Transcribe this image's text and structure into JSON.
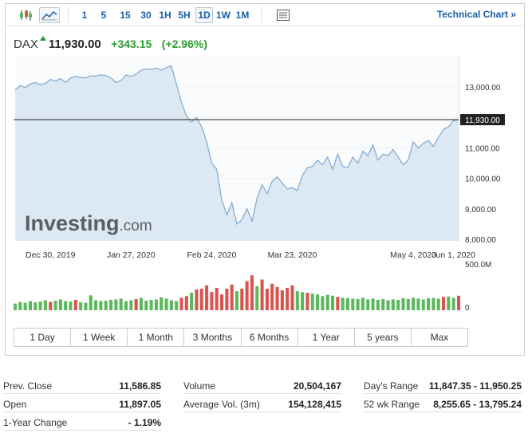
{
  "toolbar": {
    "intervals": [
      "1",
      "5",
      "15",
      "30",
      "1H",
      "5H",
      "1D",
      "1W",
      "1M"
    ],
    "active_interval": "1D",
    "technical_chart_label": "Technical Chart »"
  },
  "quote": {
    "symbol": "DAX",
    "price": "11,930.00",
    "change": "+343.15",
    "change_pct": "(+2.96%)",
    "up_color": "#2b9c2b"
  },
  "watermark": {
    "brand": "Investing",
    "suffix": ".com"
  },
  "chart_data": {
    "type": "area",
    "series": [
      {
        "values": [
          12900,
          13050,
          12980,
          13100,
          13150,
          13080,
          13120,
          13250,
          13200,
          13280,
          13150,
          13300,
          13350,
          13320,
          13300,
          13370,
          13360,
          13400,
          13380,
          13300,
          13150,
          13220,
          13400,
          13350,
          13420,
          13550,
          13600,
          13580,
          13620,
          13560,
          13640,
          13690,
          13100,
          12500,
          12050,
          11850,
          12000,
          11700,
          11200,
          10500,
          10300,
          9300,
          8800,
          9200,
          8500,
          8650,
          9000,
          8600,
          9350,
          9800,
          9500,
          9900,
          10050,
          9850,
          9650,
          9700,
          9600,
          10100,
          10350,
          10400,
          10600,
          10450,
          10700,
          10300,
          10800,
          10400,
          10350,
          10700,
          10500,
          10900,
          10750,
          11100,
          10600,
          10800,
          10750,
          10950,
          10700,
          10450,
          10600,
          11200,
          11000,
          11150,
          11250,
          11050,
          11350,
          11600,
          11700,
          11900,
          11930
        ]
      }
    ],
    "volume": [
      80,
      100,
      90,
      110,
      95,
      105,
      120,
      100,
      115,
      130,
      110,
      105,
      125,
      95,
      90,
      180,
      120,
      110,
      115,
      125,
      130,
      140,
      110,
      120,
      135,
      150,
      115,
      125,
      130,
      155,
      140,
      120,
      110,
      150,
      170,
      210,
      250,
      260,
      300,
      220,
      270,
      190,
      260,
      310,
      230,
      260,
      350,
      420,
      290,
      370,
      260,
      320,
      280,
      240,
      270,
      300,
      230,
      220,
      210,
      200,
      190,
      170,
      185,
      175,
      160,
      150,
      145,
      140,
      135,
      150,
      130,
      140,
      125,
      135,
      120,
      130,
      125,
      145,
      135,
      150,
      140,
      130,
      145,
      150,
      140,
      160,
      165,
      150,
      175
    ],
    "volume_colors": "gggggggrggggrgggggggggggrggggggggrrgrrrrrrrrgrrrgrrrrrrrggrgggggrggggggggggggggggggggrggr",
    "x_tick_labels": [
      "Dec 30, 2019",
      "Jan 27, 2020",
      "Feb 24, 2020",
      "Mar 23, 2020",
      "May 4, 2020",
      "Jun 1, 2020"
    ],
    "x_tick_index": [
      7,
      23,
      39,
      55,
      79,
      87
    ],
    "y_tick_labels": [
      "13,000.00",
      "12,000.00",
      "11,000.00",
      "10,000.00",
      "9,000.00",
      "8,000.00"
    ],
    "y_tick_values": [
      13000,
      12000,
      11000,
      10000,
      9000,
      8000
    ],
    "ylim": [
      7950,
      14000
    ],
    "current_price": 11930,
    "current_price_label": "11,930.00",
    "volume_axis_labels": [
      "500.0M",
      "0"
    ],
    "up_color": "#5cb85c",
    "down_color": "#d9534f",
    "line_color": "#7ea9d1",
    "fill_color": "#dce8f2"
  },
  "range_buttons": [
    "1 Day",
    "1 Week",
    "1 Month",
    "3 Months",
    "6 Months",
    "1 Year",
    "5 years",
    "Max"
  ],
  "stats": {
    "prev_close": {
      "label": "Prev. Close",
      "value": "11,586.85"
    },
    "open": {
      "label": "Open",
      "value": "11,897.05"
    },
    "one_year_change": {
      "label": "1-Year Change",
      "value": "- 1.19%"
    },
    "volume": {
      "label": "Volume",
      "value": "20,504,167"
    },
    "avg_volume": {
      "label": "Average Vol. (3m)",
      "value": "154,128,415"
    },
    "days_range": {
      "label": "Day's Range",
      "value": "11,847.35 - 11,950.25"
    },
    "wk52_range": {
      "label": "52 wk Range",
      "value": "8,255.65 - 13,795.24"
    }
  }
}
